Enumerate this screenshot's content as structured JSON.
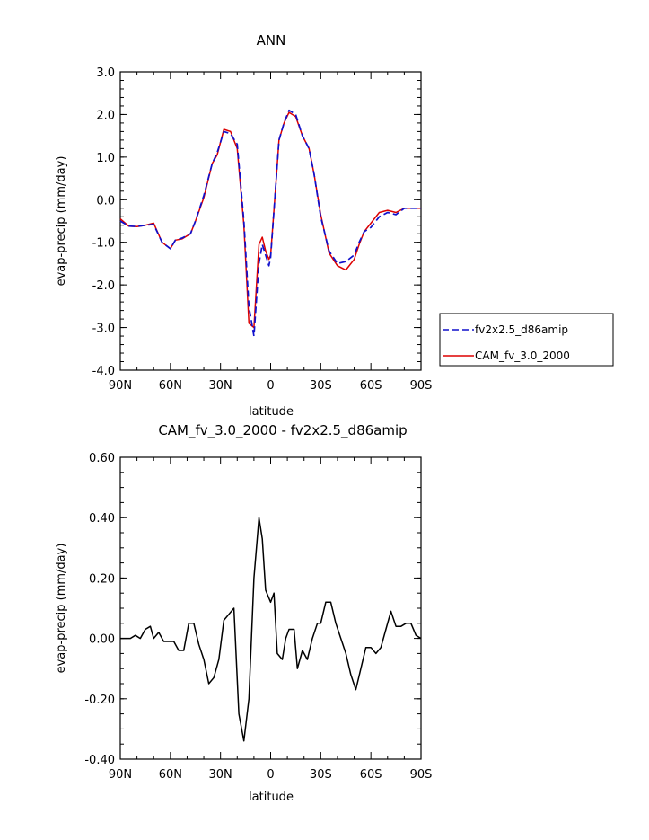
{
  "colors": {
    "background": "#ffffff",
    "frame": "#000000"
  },
  "chart_data": [
    {
      "type": "line",
      "title": "ANN",
      "xlabel": "latitude",
      "ylabel": "evap-precip (mm/day)",
      "xlim": [
        90,
        -90
      ],
      "ylim": [
        -4.0,
        3.0
      ],
      "xticks": [
        90,
        60,
        30,
        0,
        -30,
        -60,
        -90
      ],
      "xtick_labels": [
        "90N",
        "60N",
        "30N",
        "0",
        "30S",
        "60S",
        "90S"
      ],
      "yticks": [
        -4,
        -3,
        -2,
        -1,
        0,
        1,
        2,
        3
      ],
      "ytick_labels": [
        "-4.0",
        "-3.0",
        "-2.0",
        "-1.0",
        "0.0",
        "1.0",
        "2.0",
        "3.0"
      ],
      "grid": false,
      "legend_position": "outside right",
      "series": [
        {
          "name": "fv2x2.5_d86amip",
          "color": "#1010cc",
          "dash": "dashed",
          "x": [
            90,
            85,
            80,
            75,
            70,
            65,
            60,
            57,
            53,
            48,
            45,
            40,
            35,
            32,
            28,
            24,
            20,
            16,
            13,
            10,
            7,
            5,
            3,
            1,
            0,
            -3,
            -5,
            -8,
            -11,
            -15,
            -19,
            -23,
            -26,
            -30,
            -35,
            -40,
            -45,
            -50,
            -53,
            -56,
            -60,
            -65,
            -70,
            -75,
            -80,
            -85,
            -90
          ],
          "y": [
            -0.5,
            -0.62,
            -0.63,
            -0.6,
            -0.58,
            -1.0,
            -1.15,
            -0.95,
            -0.9,
            -0.8,
            -0.5,
            0.1,
            0.85,
            1.1,
            1.6,
            1.55,
            1.3,
            -0.5,
            -2.5,
            -3.2,
            -1.5,
            -1.05,
            -1.3,
            -1.55,
            -1.35,
            0.3,
            1.4,
            1.8,
            2.1,
            2.0,
            1.5,
            1.2,
            0.6,
            -0.4,
            -1.2,
            -1.5,
            -1.45,
            -1.3,
            -1.0,
            -0.75,
            -0.65,
            -0.4,
            -0.3,
            -0.35,
            -0.2,
            -0.2,
            -0.2
          ]
        },
        {
          "name": "CAM_fv_3.0_2000",
          "color": "#dd0000",
          "dash": "solid",
          "x": [
            90,
            85,
            80,
            75,
            70,
            65,
            60,
            57,
            53,
            48,
            45,
            40,
            35,
            32,
            28,
            24,
            20,
            16,
            13,
            10,
            7,
            5,
            3,
            1,
            0,
            -3,
            -5,
            -8,
            -11,
            -15,
            -19,
            -23,
            -26,
            -30,
            -35,
            -40,
            -45,
            -50,
            -53,
            -56,
            -60,
            -65,
            -70,
            -75,
            -80,
            -85,
            -90
          ],
          "y": [
            -0.45,
            -0.62,
            -0.63,
            -0.6,
            -0.55,
            -1.0,
            -1.15,
            -0.95,
            -0.92,
            -0.8,
            -0.5,
            0.05,
            0.85,
            1.05,
            1.65,
            1.6,
            1.2,
            -0.6,
            -2.9,
            -3.0,
            -1.05,
            -0.88,
            -1.2,
            -1.4,
            -1.3,
            0.3,
            1.4,
            1.8,
            2.05,
            1.95,
            1.5,
            1.2,
            0.6,
            -0.35,
            -1.25,
            -1.55,
            -1.65,
            -1.4,
            -1.05,
            -0.75,
            -0.55,
            -0.3,
            -0.25,
            -0.3,
            -0.2,
            -0.2,
            -0.2
          ]
        }
      ]
    },
    {
      "type": "line",
      "title": "CAM_fv_3.0_2000 - fv2x2.5_d86amip",
      "xlabel": "latitude",
      "ylabel": "evap-precip (mm/day)",
      "xlim": [
        90,
        -90
      ],
      "ylim": [
        -0.4,
        0.6
      ],
      "xticks": [
        90,
        60,
        30,
        0,
        -30,
        -60,
        -90
      ],
      "xtick_labels": [
        "90N",
        "60N",
        "30N",
        "0",
        "30S",
        "60S",
        "90S"
      ],
      "yticks": [
        -0.4,
        -0.2,
        0,
        0.2,
        0.4,
        0.6
      ],
      "ytick_labels": [
        "-0.40",
        "-0.20",
        "0.00",
        "0.20",
        "0.40",
        "0.60"
      ],
      "grid": false,
      "series": [
        {
          "color": "#000000",
          "dash": "solid",
          "x": [
            90,
            87,
            84,
            81,
            78,
            75,
            72,
            70,
            67,
            64,
            61,
            58,
            55,
            52,
            49,
            46,
            43,
            40,
            37,
            34,
            31,
            28,
            25,
            22,
            19,
            16,
            13,
            10,
            7,
            5,
            3,
            0,
            -2,
            -4,
            -7,
            -9,
            -11,
            -14,
            -16,
            -19,
            -22,
            -25,
            -28,
            -30,
            -33,
            -36,
            -39,
            -42,
            -45,
            -48,
            -51,
            -54,
            -57,
            -60,
            -63,
            -66,
            -69,
            -72,
            -75,
            -78,
            -81,
            -84,
            -87,
            -90
          ],
          "y": [
            0.0,
            0.0,
            0.0,
            0.01,
            0.0,
            0.03,
            0.04,
            0.0,
            0.02,
            -0.01,
            -0.01,
            -0.01,
            -0.04,
            -0.04,
            0.05,
            0.05,
            -0.02,
            -0.07,
            -0.15,
            -0.13,
            -0.07,
            0.06,
            0.08,
            0.1,
            -0.25,
            -0.34,
            -0.2,
            0.2,
            0.4,
            0.33,
            0.16,
            0.12,
            0.15,
            -0.05,
            -0.07,
            0.0,
            0.03,
            0.03,
            -0.1,
            -0.04,
            -0.07,
            0.0,
            0.05,
            0.05,
            0.12,
            0.12,
            0.05,
            0.0,
            -0.05,
            -0.12,
            -0.17,
            -0.1,
            -0.03,
            -0.03,
            -0.05,
            -0.03,
            0.03,
            0.09,
            0.04,
            0.04,
            0.05,
            0.05,
            0.01,
            0.0
          ]
        }
      ]
    }
  ]
}
